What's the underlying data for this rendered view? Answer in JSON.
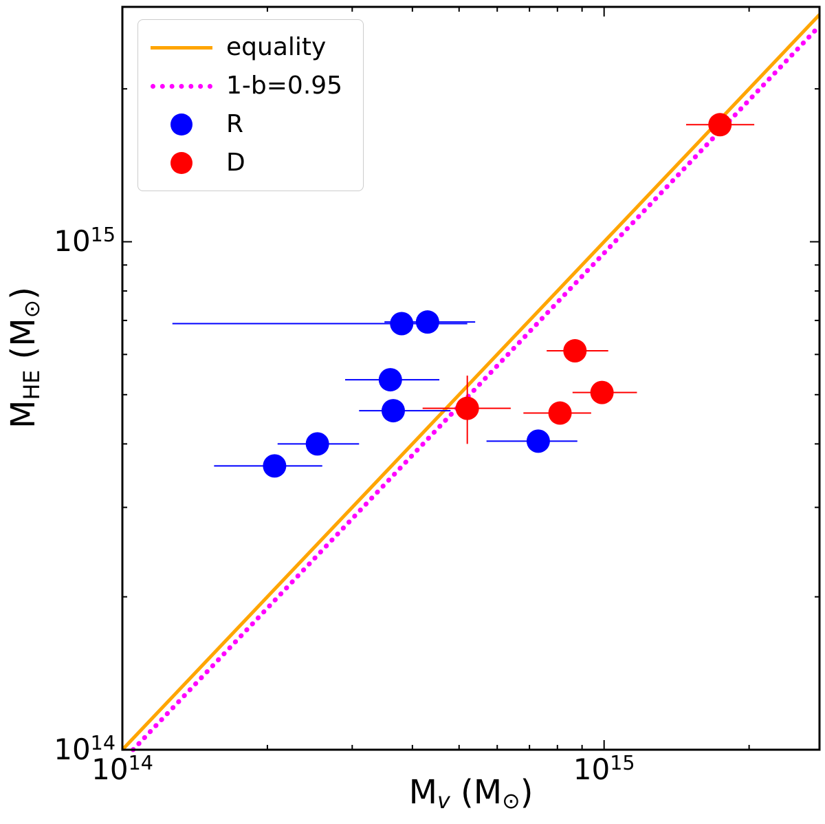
{
  "chart_data": {
    "type": "scatter",
    "scale": "log-log",
    "grid": false,
    "background": "#FFFFFF",
    "xlim": [
      100000000000000.0,
      2800000000000000.0
    ],
    "ylim": [
      100000000000000.0,
      2900000000000000.0
    ],
    "xlabel": {
      "pre": "M",
      "sub": "v",
      "mid": " (M",
      "sun": "⊙",
      "post": ")"
    },
    "ylabel": {
      "pre": "M",
      "sub": "HE",
      "mid": " (M",
      "sun": "⊙",
      "post": ")"
    },
    "x_ticks": [
      {
        "value": 100000000000000.0,
        "base": "10",
        "exp": "14"
      },
      {
        "value": 1000000000000000.0,
        "base": "10",
        "exp": "15"
      }
    ],
    "y_ticks": [
      {
        "value": 1000000000000000.0,
        "base": "10",
        "exp": "15"
      },
      {
        "value": 100000000000000.0,
        "base": "10",
        "exp": "14"
      }
    ],
    "lines": [
      {
        "name": "equality",
        "slope": 1,
        "color": "#FFA500",
        "style": "solid",
        "width": 5
      },
      {
        "name": "1-b=0.95",
        "slope": 0.95,
        "color": "#FF00FF",
        "style": "dotted",
        "width": 7
      }
    ],
    "series": [
      {
        "name": "R",
        "color": "#0000FF",
        "marker_radius": 17,
        "points": [
          {
            "x": 380000000000000.0,
            "y": 690000000000000.0,
            "xlo": 127000000000000.0,
            "xhi": 520000000000000.0
          },
          {
            "x": 430000000000000.0,
            "y": 695000000000000.0,
            "xlo": 350000000000000.0,
            "xhi": 540000000000000.0
          },
          {
            "x": 360000000000000.0,
            "y": 535000000000000.0,
            "xlo": 290000000000000.0,
            "xhi": 455000000000000.0
          },
          {
            "x": 365000000000000.0,
            "y": 465000000000000.0,
            "xlo": 310000000000000.0,
            "xhi": 480000000000000.0
          },
          {
            "x": 254000000000000.0,
            "y": 400000000000000.0,
            "xlo": 210000000000000.0,
            "xhi": 310000000000000.0
          },
          {
            "x": 207000000000000.0,
            "y": 362000000000000.0,
            "xlo": 155000000000000.0,
            "xhi": 260000000000000.0
          },
          {
            "x": 730000000000000.0,
            "y": 405000000000000.0,
            "xlo": 570000000000000.0,
            "xhi": 880000000000000.0
          }
        ]
      },
      {
        "name": "D",
        "color": "#FF0000",
        "marker_radius": 17,
        "points": [
          {
            "x": 1740000000000000.0,
            "y": 1700000000000000.0,
            "xlo": 1480000000000000.0,
            "xhi": 2050000000000000.0
          },
          {
            "x": 870000000000000.0,
            "y": 610000000000000.0,
            "xlo": 760000000000000.0,
            "xhi": 1020000000000000.0
          },
          {
            "x": 990000000000000.0,
            "y": 505000000000000.0,
            "xlo": 860000000000000.0,
            "xhi": 1170000000000000.0
          },
          {
            "x": 520000000000000.0,
            "y": 470000000000000.0,
            "xlo": 420000000000000.0,
            "xhi": 640000000000000.0,
            "ylo": 400000000000000.0,
            "yhi": 545000000000000.0
          },
          {
            "x": 810000000000000.0,
            "y": 460000000000000.0,
            "xlo": 680000000000000.0,
            "xhi": 940000000000000.0
          }
        ]
      }
    ],
    "legend": {
      "position": "upper left",
      "items": [
        {
          "label": "equality",
          "type": "line",
          "style": "solid",
          "color": "#FFA500"
        },
        {
          "label": "1-b=0.95",
          "type": "line",
          "style": "dotted",
          "color": "#FF00FF"
        },
        {
          "label": "R",
          "type": "marker",
          "color": "#0000FF"
        },
        {
          "label": "D",
          "type": "marker",
          "color": "#FF0000"
        }
      ]
    }
  }
}
